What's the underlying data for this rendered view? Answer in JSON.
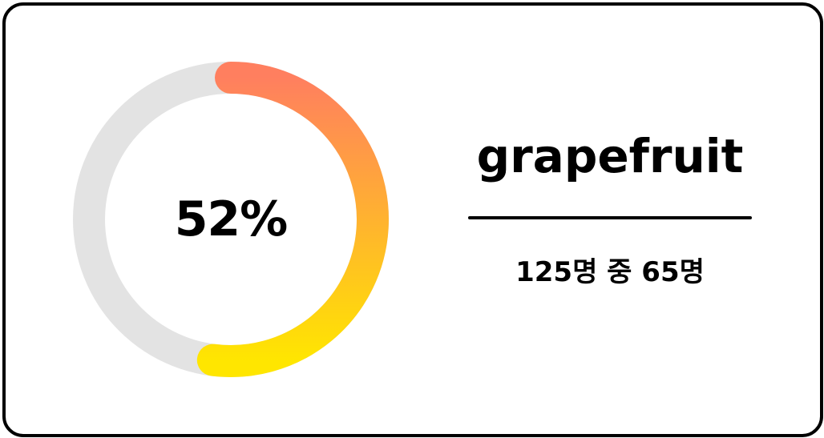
{
  "card": {
    "percent_label": "52%",
    "progress": 0.52,
    "name": "grapefruit",
    "count_label": "125명 중 65명",
    "colors": {
      "track": "#e3e3e3",
      "gradient_start": "#ff7f5f",
      "gradient_end": "#ffe600",
      "border": "#000000"
    }
  }
}
